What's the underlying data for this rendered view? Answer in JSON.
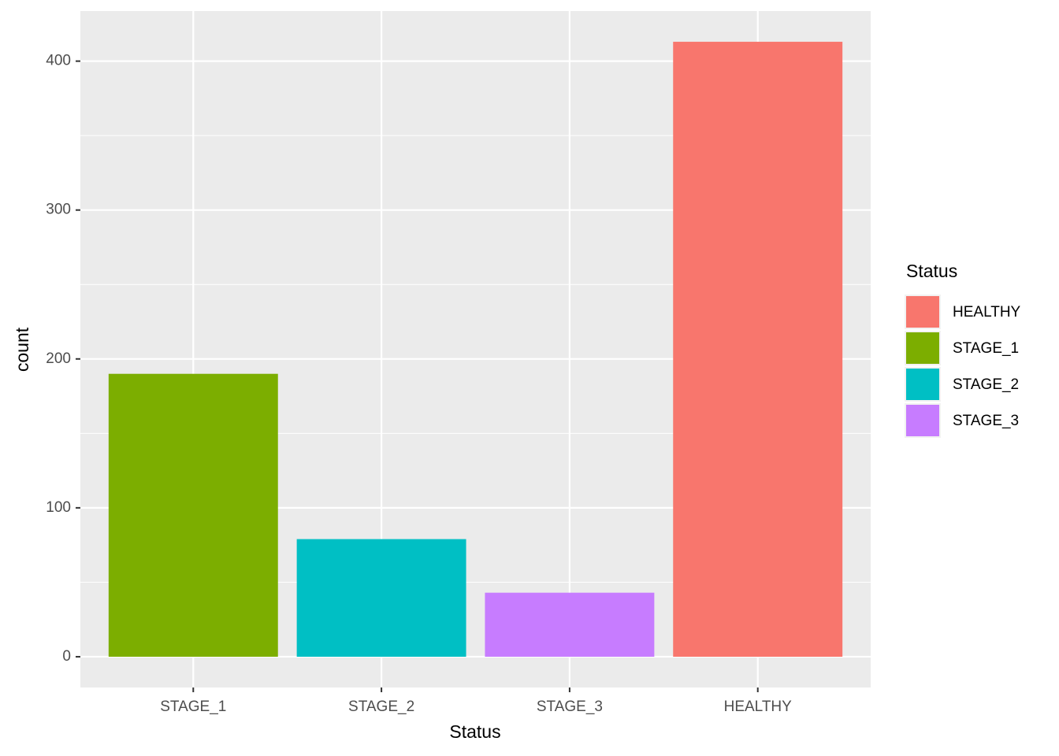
{
  "chart_data": {
    "type": "bar",
    "categories": [
      "STAGE_1",
      "STAGE_2",
      "STAGE_3",
      "HEALTHY"
    ],
    "values": [
      190,
      79,
      43,
      413
    ],
    "colors": [
      "#7CAE00",
      "#00BFC4",
      "#C77CFF",
      "#F8766D"
    ],
    "x_label": "Status",
    "y_label": "count",
    "ylim": [
      -20.65,
      433.65
    ],
    "yticks": [
      0,
      100,
      200,
      300,
      400
    ],
    "minor_yticks": [
      50,
      150,
      250,
      350
    ],
    "grid": true,
    "legend": {
      "title": "Status",
      "position": "right",
      "entries": [
        "HEALTHY",
        "STAGE_1",
        "STAGE_2",
        "STAGE_3"
      ],
      "colors": [
        "#F8766D",
        "#7CAE00",
        "#00BFC4",
        "#C77CFF"
      ]
    }
  }
}
